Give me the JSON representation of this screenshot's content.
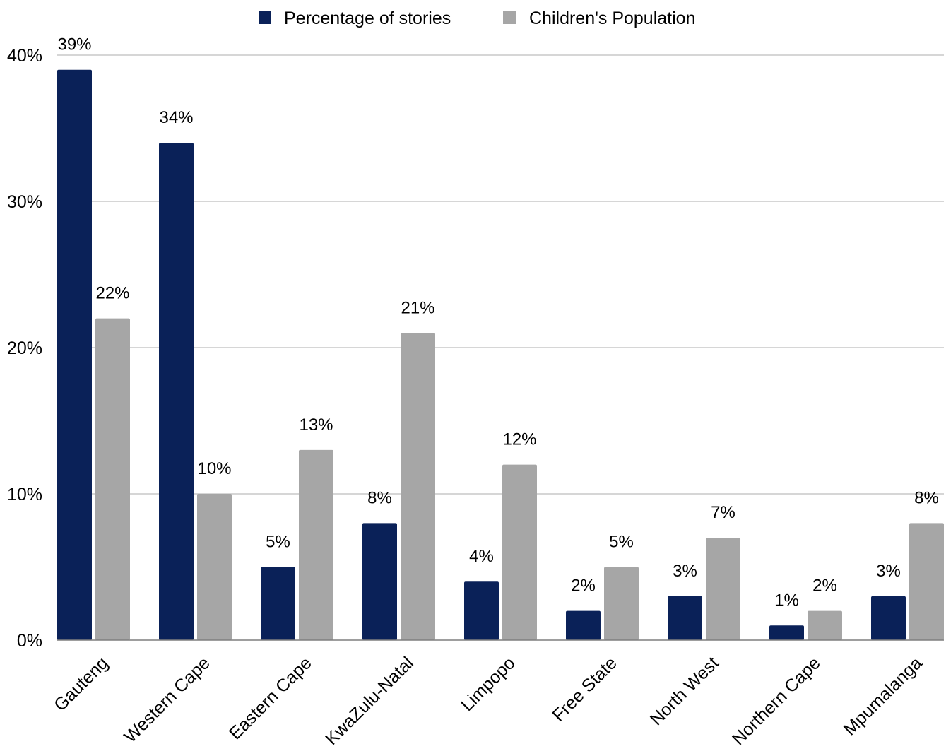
{
  "chart_data": {
    "type": "bar",
    "title": "",
    "xlabel": "",
    "ylabel": "",
    "categories": [
      "Gauteng",
      "Western Cape",
      "Eastern Cape",
      "KwaZulu-Natal",
      "Limpopo",
      "Free State",
      "North West",
      "Northern Cape",
      "Mpumalanga"
    ],
    "series": [
      {
        "name": "Percentage of stories",
        "color": "#0a2158",
        "values": [
          39,
          34,
          5,
          8,
          4,
          2,
          3,
          1,
          3
        ],
        "labels": [
          "39%",
          "34%",
          "5%",
          "8%",
          "4%",
          "2%",
          "3%",
          "1%",
          "3%"
        ]
      },
      {
        "name": "Children's Population",
        "color": "#a6a6a6",
        "values": [
          22,
          10,
          13,
          21,
          12,
          5,
          7,
          2,
          8
        ],
        "labels": [
          "22%",
          "10%",
          "13%",
          "21%",
          "12%",
          "5%",
          "7%",
          "2%",
          "8%"
        ]
      }
    ],
    "ylim": [
      0,
      40
    ],
    "yticks": [
      0,
      10,
      20,
      30,
      40
    ],
    "ytick_labels": [
      "0%",
      "10%",
      "20%",
      "30%",
      "40%"
    ],
    "grid": true,
    "legend_position": "top-center"
  }
}
